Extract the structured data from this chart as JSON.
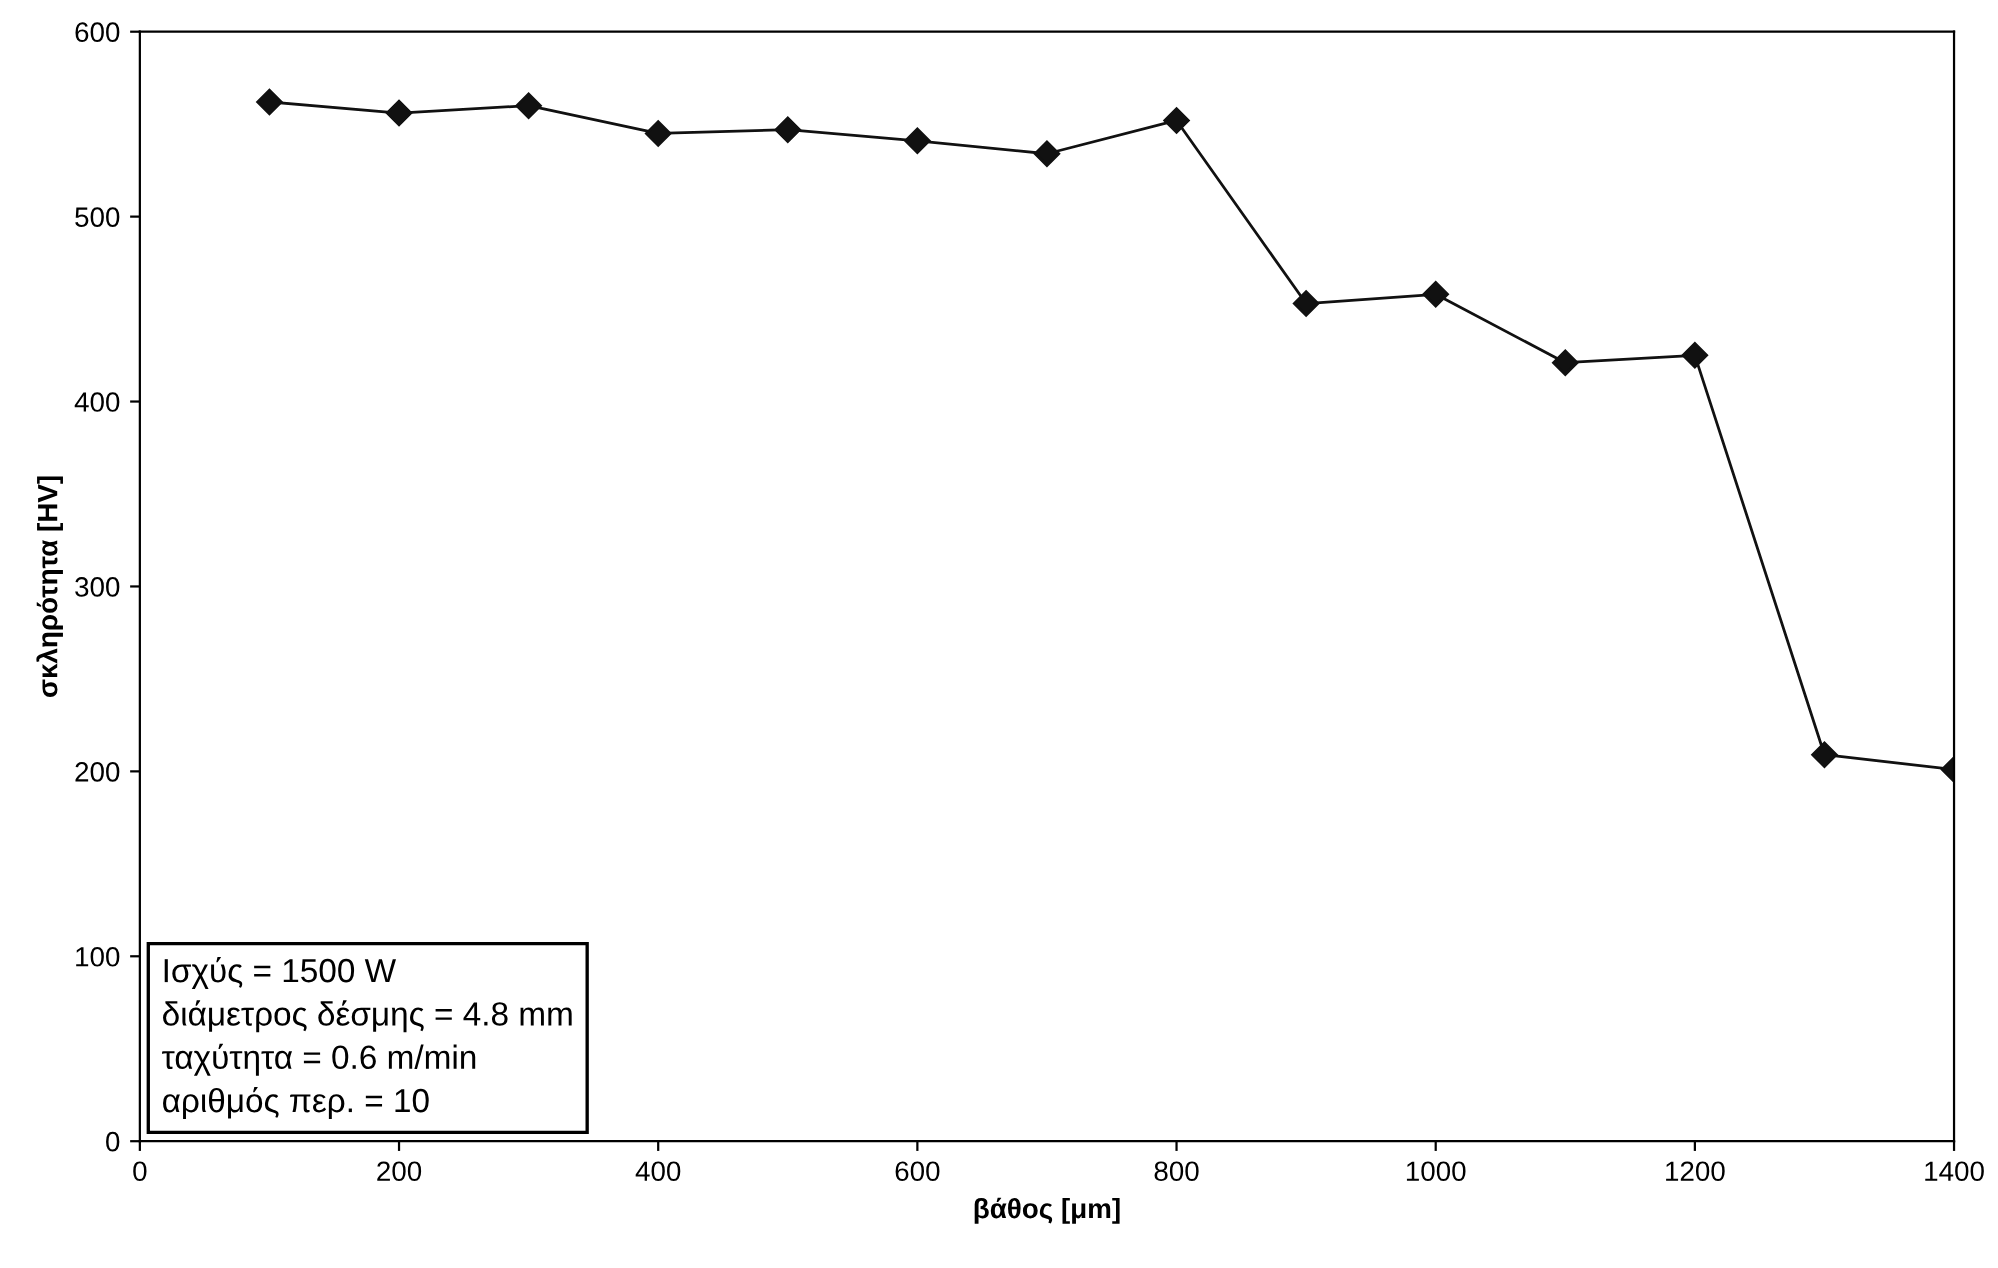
{
  "chart_data": {
    "type": "line",
    "xlabel": "βάθος [μm]",
    "ylabel": "σκληρότητα [HV]",
    "x": [
      100,
      200,
      300,
      400,
      500,
      600,
      700,
      800,
      900,
      1000,
      1100,
      1200,
      1300,
      1400
    ],
    "series": [
      {
        "color": "#111111",
        "values": [
          562,
          556,
          560,
          545,
          547,
          541,
          534,
          552,
          453,
          458,
          421,
          425,
          209,
          201
        ]
      }
    ],
    "xlim": [
      0,
      1400
    ],
    "ylim": [
      0,
      600
    ],
    "xticks": [
      0,
      200,
      400,
      600,
      800,
      1000,
      1200,
      1400
    ],
    "yticks": [
      0,
      100,
      200,
      300,
      400,
      500,
      600
    ],
    "marker": "diamond",
    "line_style": "solid",
    "grid": false,
    "legend": false,
    "annotations": [
      "Ισχύς = 1500 W\nδιάμετρος δέσμης = 4.8 mm\nταχύτητα = 0.6 m/min\nαριθμός περ. = 10"
    ]
  }
}
